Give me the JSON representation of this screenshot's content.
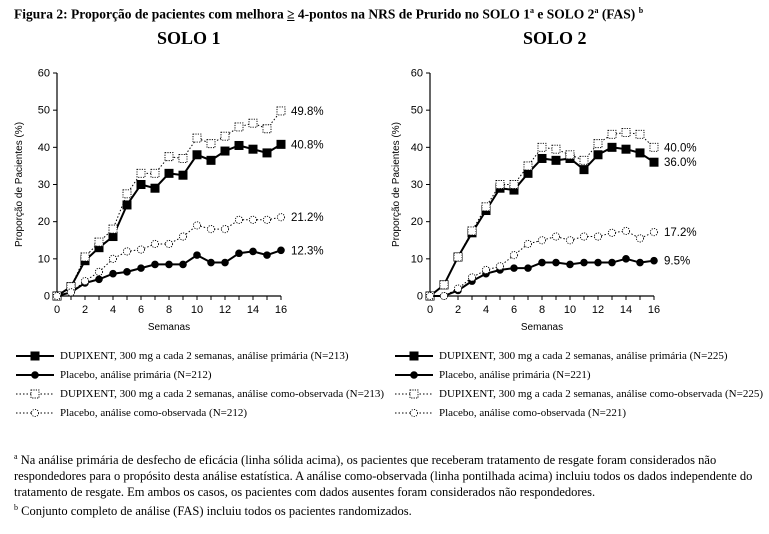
{
  "figure": {
    "title_pre": "Figura 2: Proporção de pacientes com melhora ",
    "title_ge": "≥",
    "title_mid1": " 4-pontos na NRS de Prurido no SOLO 1",
    "title_sup_a": "a",
    "title_mid2": " e SOLO 2",
    "title_sup_a2": "a",
    "title_post": " (FAS) ",
    "title_sup_b": "b"
  },
  "footnotes": {
    "a_marker": "a",
    "a_text": " Na análise primária de desfecho de eficácia (linha sólida acima), os pacientes que receberam tratamento de resgate foram considerados não respondedores para o propósito desta análise estatística. A análise como-observada (linha pontilhada acima) incluiu todos os dados independente do tratamento de resgate. Em ambos os casos, os pacientes com dados ausentes foram considerados não respondedores.",
    "b_marker": "b",
    "b_text": " Conjunto completo de análise (FAS) incluiu todos os pacientes randomizados."
  },
  "chart_data": [
    {
      "type": "line",
      "title": "SOLO 1",
      "xlabel": "Semanas",
      "ylabel": "Proporção de Pacientes (%)",
      "xlim": [
        0,
        16
      ],
      "ylim": [
        0,
        60
      ],
      "xticks": [
        "0",
        "2",
        "4",
        "6",
        "8",
        "10",
        "12",
        "14",
        "16"
      ],
      "yticks": [
        "0",
        "10",
        "20",
        "30",
        "40",
        "50",
        "60"
      ],
      "x": [
        0,
        1,
        2,
        3,
        4,
        5,
        6,
        7,
        8,
        9,
        10,
        11,
        12,
        13,
        14,
        15,
        16
      ],
      "series": [
        {
          "name": "DUPIXENT, 300 mg a cada 2 semanas, análise primária (N=213)",
          "style": "solid-square",
          "values": [
            0,
            2.5,
            9.5,
            13,
            16,
            24.5,
            30,
            29,
            33,
            32.5,
            38,
            36.5,
            39,
            40.5,
            39.5,
            38.5,
            40.8
          ],
          "end_label": "40.8%"
        },
        {
          "name": "Placebo, análise primária (N=212)",
          "style": "solid-circle",
          "values": [
            0,
            1,
            3.5,
            4.5,
            6,
            6.5,
            7.5,
            8.5,
            8.5,
            8.5,
            11,
            9,
            9,
            11.5,
            12,
            11,
            12.3
          ],
          "end_label": "12.3%"
        },
        {
          "name": "DUPIXENT, 300 mg a cada 2 semanas, análise como-observada (N=213)",
          "style": "dotted-square",
          "values": [
            0,
            2.5,
            10.5,
            14.5,
            18,
            27.5,
            33,
            33,
            37.5,
            37,
            42.5,
            41,
            43,
            45.5,
            46.5,
            45,
            49.8
          ],
          "end_label": "49.8%"
        },
        {
          "name": "Placebo, análise como-observada (N=212)",
          "style": "dotted-circle",
          "values": [
            0,
            1,
            4,
            6.5,
            10,
            12,
            12.5,
            14,
            14,
            16,
            19,
            18,
            18,
            20.5,
            20.5,
            20.5,
            21.2
          ],
          "end_label": "21.2%"
        }
      ]
    },
    {
      "type": "line",
      "title": "SOLO 2",
      "xlabel": "Semanas",
      "ylabel": "Proporção de Pacientes (%)",
      "xlim": [
        0,
        16
      ],
      "ylim": [
        0,
        60
      ],
      "xticks": [
        "0",
        "2",
        "4",
        "6",
        "8",
        "10",
        "12",
        "14",
        "16"
      ],
      "yticks": [
        "0",
        "10",
        "20",
        "30",
        "40",
        "50",
        "60"
      ],
      "x": [
        0,
        1,
        2,
        3,
        4,
        5,
        6,
        7,
        8,
        9,
        10,
        11,
        12,
        13,
        14,
        15,
        16
      ],
      "series": [
        {
          "name": "DUPIXENT, 300 mg a cada 2 semanas, análise primária (N=225)",
          "style": "solid-square",
          "values": [
            0,
            3,
            10.5,
            17,
            23,
            29,
            28.5,
            33,
            37,
            36.5,
            37,
            34,
            38,
            40,
            39.5,
            38.5,
            36.0
          ],
          "end_label": "36.0%"
        },
        {
          "name": "Placebo, análise primária (N=221)",
          "style": "solid-circle",
          "values": [
            0,
            0,
            1.5,
            4,
            6,
            7,
            7.5,
            7.5,
            9,
            9,
            8.5,
            9,
            9,
            9,
            10,
            9,
            9.5
          ],
          "end_label": "9.5%"
        },
        {
          "name": "DUPIXENT, 300 mg a cada 2 semanas, análise como-observada (N=225)",
          "style": "dotted-square",
          "values": [
            0,
            3,
            10.5,
            17.5,
            24,
            30,
            30,
            35,
            40,
            39.5,
            38,
            36.5,
            41,
            43.5,
            44,
            43.5,
            40.0
          ],
          "end_label": "40.0%"
        },
        {
          "name": "Placebo, análise como-observada (N=221)",
          "style": "dotted-circle",
          "values": [
            0,
            0,
            2,
            5,
            7,
            8,
            11,
            14,
            15,
            16,
            15,
            16,
            16,
            17,
            17.5,
            15.5,
            17.2
          ],
          "end_label": "17.2%"
        }
      ]
    }
  ]
}
